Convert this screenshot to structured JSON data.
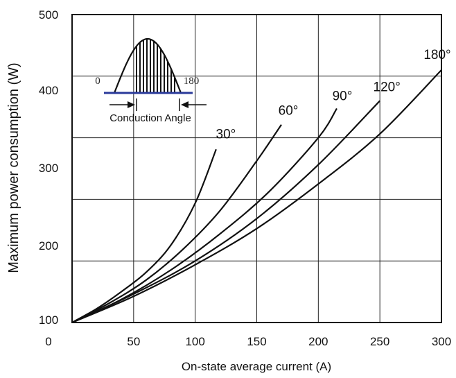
{
  "chart_data": {
    "type": "line",
    "title": "",
    "xlabel": "On-state average current (A)",
    "ylabel": "Maximum power consumption (W)",
    "xlim": [
      0,
      300
    ],
    "ylim": [
      100,
      500
    ],
    "xticks": [
      "0",
      "50",
      "100",
      "150",
      "200",
      "250",
      "300"
    ],
    "yticks": [
      "100",
      "200",
      "300",
      "400",
      "500"
    ],
    "grid": true,
    "series": [
      {
        "name": "30°",
        "x": [
          0,
          20,
          40,
          60,
          80,
          100,
          117
        ],
        "y": [
          100,
          118,
          140,
          165,
          200,
          255,
          325
        ]
      },
      {
        "name": "60°",
        "x": [
          0,
          30,
          60,
          90,
          120,
          150,
          170
        ],
        "y": [
          100,
          125,
          155,
          195,
          245,
          310,
          357
        ]
      },
      {
        "name": "90°",
        "x": [
          0,
          40,
          80,
          120,
          160,
          200,
          215
        ],
        "y": [
          100,
          130,
          168,
          215,
          270,
          340,
          378
        ]
      },
      {
        "name": "120°",
        "x": [
          0,
          50,
          100,
          150,
          200,
          250
        ],
        "y": [
          100,
          137,
          180,
          235,
          305,
          388
        ]
      },
      {
        "name": "180°",
        "x": [
          0,
          50,
          100,
          150,
          200,
          250,
          300
        ],
        "y": [
          100,
          134,
          175,
          222,
          280,
          345,
          428
        ]
      }
    ],
    "inset": {
      "left_label": "0",
      "right_label": "180",
      "caption": "Conduction Angle"
    }
  }
}
